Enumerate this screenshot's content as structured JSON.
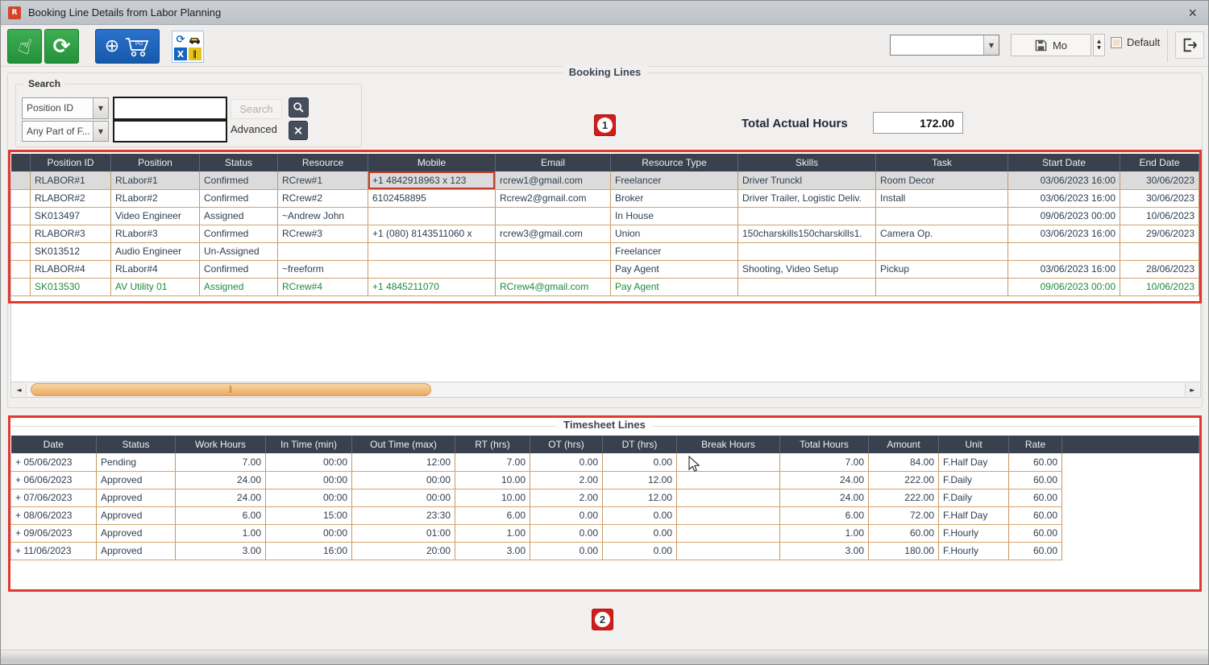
{
  "window": {
    "title": "Booking Line Details from Labor Planning",
    "app_icon_text": "R",
    "close": "×"
  },
  "toolbar": {
    "po_badge": "PO",
    "view_dropdown_value": "",
    "save_view_label": "Mo",
    "default_label": "Default"
  },
  "glyphs": {
    "hand": "☝",
    "refresh": "⟳",
    "plus_circle": "⊕",
    "sync_small": "⟳",
    "excel_x": "X",
    "bars": "‖",
    "dropdown": "▼",
    "spinner_up": "▲",
    "spinner_down": "▼",
    "scroll_left": "◄",
    "scroll_right": "►",
    "grip": "‖",
    "btn_x": "×"
  },
  "booking_section": {
    "title": "Booking Lines",
    "search": {
      "legend": "Search",
      "field_dropdown_value": "Position ID",
      "match_dropdown_value": "Any Part of F...",
      "search_input_value": "",
      "search_input2_value": "",
      "search_button": "Search",
      "advanced_label": "Advanced"
    },
    "annotation_1": "1",
    "total_actual_hours": {
      "label": "Total Actual Hours",
      "value": "172.00"
    },
    "table": {
      "columns": [
        "",
        "Position ID",
        "Position",
        "Status",
        "Resource",
        "Mobile",
        "Email",
        "Resource Type",
        "Skills",
        "Task",
        "Start Date",
        "End Date"
      ],
      "rows": [
        {
          "style": "selected",
          "cell_styles": {
            "5": "hl-red"
          },
          "cells": [
            "",
            "RLABOR#1",
            "RLabor#1",
            "Confirmed",
            "RCrew#1",
            "+1 4842918963 x 123",
            "rcrew1@gmail.com",
            "Freelancer",
            "Driver Trunckl",
            "Room Decor",
            "03/06/2023 16:00",
            "30/06/2023"
          ]
        },
        {
          "cells": [
            "",
            "RLABOR#2",
            "RLabor#2",
            "Confirmed",
            "RCrew#2",
            "6102458895",
            "Rcrew2@gmail.com",
            "Broker",
            "Driver Trailer, Logistic Deliv.",
            "Install",
            "03/06/2023 16:00",
            "30/06/2023"
          ]
        },
        {
          "cells": [
            "",
            "SK013497",
            "Video Engineer",
            "Assigned",
            "~Andrew John",
            "",
            "",
            "In House",
            "",
            "",
            "09/06/2023 00:00",
            "10/06/2023"
          ]
        },
        {
          "cells": [
            "",
            "RLABOR#3",
            "RLabor#3",
            "Confirmed",
            "RCrew#3",
            "+1 (080) 8143511060 x",
            "rcrew3@gmail.com",
            "Union",
            "150charskills150charskills1.",
            "Camera Op.",
            "03/06/2023 16:00",
            "29/06/2023"
          ]
        },
        {
          "cells": [
            "",
            "SK013512",
            "Audio Engineer",
            "Un-Assigned",
            "",
            "",
            "",
            "Freelancer",
            "",
            "",
            "",
            ""
          ]
        },
        {
          "cells": [
            "",
            "RLABOR#4",
            "RLabor#4",
            "Confirmed",
            "~freeform",
            "",
            "",
            "Pay Agent",
            "Shooting, Video Setup",
            "Pickup",
            "03/06/2023 16:00",
            "28/06/2023"
          ]
        },
        {
          "style": "green",
          "cells": [
            "",
            "SK013530",
            "AV Utility 01",
            "Assigned",
            "RCrew#4",
            "+1 4845211070",
            "RCrew4@gmail.com",
            "Pay Agent",
            "",
            "",
            "09/06/2023 00:00",
            "10/06/2023"
          ]
        }
      ]
    }
  },
  "timesheet_section": {
    "title": "Timesheet Lines",
    "annotation_2": "2",
    "table": {
      "columns": [
        "Date",
        "Status",
        "Work Hours",
        "In Time (min)",
        "Out Time (max)",
        "RT (hrs)",
        "OT (hrs)",
        "DT (hrs)",
        "Break Hours",
        "Total Hours",
        "Amount",
        "Unit",
        "Rate",
        ""
      ],
      "rows": [
        {
          "cells": [
            "+ 05/06/2023",
            "Pending",
            "7.00",
            "00:00",
            "12:00",
            "7.00",
            "0.00",
            "0.00",
            "",
            "7.00",
            "84.00",
            "F.Half Day",
            "60.00",
            ""
          ]
        },
        {
          "cells": [
            "+ 06/06/2023",
            "Approved",
            "24.00",
            "00:00",
            "00:00",
            "10.00",
            "2.00",
            "12.00",
            "",
            "24.00",
            "222.00",
            "F.Daily",
            "60.00",
            ""
          ]
        },
        {
          "cells": [
            "+ 07/06/2023",
            "Approved",
            "24.00",
            "00:00",
            "00:00",
            "10.00",
            "2.00",
            "12.00",
            "",
            "24.00",
            "222.00",
            "F.Daily",
            "60.00",
            ""
          ]
        },
        {
          "cells": [
            "+ 08/06/2023",
            "Approved",
            "6.00",
            "15:00",
            "23:30",
            "6.00",
            "0.00",
            "0.00",
            "",
            "6.00",
            "72.00",
            "F.Half Day",
            "60.00",
            ""
          ]
        },
        {
          "cells": [
            "+ 09/06/2023",
            "Approved",
            "1.00",
            "00:00",
            "01:00",
            "1.00",
            "0.00",
            "0.00",
            "",
            "1.00",
            "60.00",
            "F.Hourly",
            "60.00",
            ""
          ]
        },
        {
          "cells": [
            "+ 11/06/2023",
            "Approved",
            "3.00",
            "16:00",
            "20:00",
            "3.00",
            "0.00",
            "0.00",
            "",
            "3.00",
            "180.00",
            "F.Hourly",
            "60.00",
            ""
          ]
        }
      ]
    }
  }
}
